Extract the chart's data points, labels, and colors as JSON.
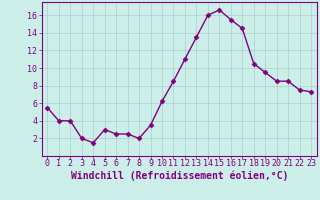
{
  "x": [
    0,
    1,
    2,
    3,
    4,
    5,
    6,
    7,
    8,
    9,
    10,
    11,
    12,
    13,
    14,
    15,
    16,
    17,
    18,
    19,
    20,
    21,
    22,
    23
  ],
  "y": [
    5.5,
    4.0,
    4.0,
    2.0,
    1.5,
    3.0,
    2.5,
    2.5,
    2.0,
    3.5,
    6.2,
    8.5,
    11.0,
    13.5,
    16.0,
    16.6,
    15.5,
    14.5,
    10.5,
    9.5,
    8.5,
    8.5,
    7.5,
    7.3
  ],
  "line_color": "#800080",
  "marker_color": "#800080",
  "bg_color": "#cceee8",
  "grid_color": "#aacccc",
  "xlabel": "Windchill (Refroidissement éolien,°C)",
  "xlabel_color": "#800080",
  "tick_color": "#800080",
  "spine_color": "#800080",
  "xlim": [
    -0.5,
    23.5
  ],
  "ylim": [
    0,
    17.5
  ],
  "yticks": [
    2,
    4,
    6,
    8,
    10,
    12,
    14,
    16
  ],
  "xticks": [
    0,
    1,
    2,
    3,
    4,
    5,
    6,
    7,
    8,
    9,
    10,
    11,
    12,
    13,
    14,
    15,
    16,
    17,
    18,
    19,
    20,
    21,
    22,
    23
  ],
  "xtick_labels": [
    "0",
    "1",
    "2",
    "3",
    "4",
    "5",
    "6",
    "7",
    "8",
    "9",
    "10",
    "11",
    "12",
    "13",
    "14",
    "15",
    "16",
    "17",
    "18",
    "19",
    "20",
    "21",
    "22",
    "23"
  ],
  "marker_size": 4,
  "line_width": 1.0,
  "tick_fontsize": 6,
  "xlabel_fontsize": 7
}
